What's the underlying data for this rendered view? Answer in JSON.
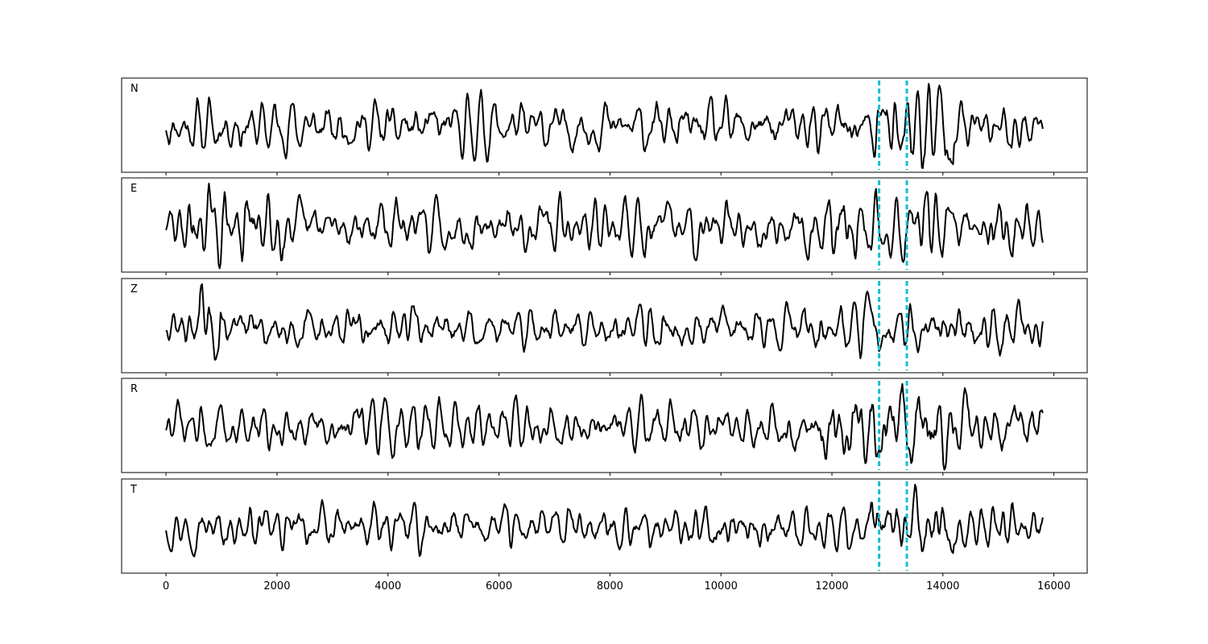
{
  "chart_data": {
    "type": "line",
    "x_range": [
      -800,
      16600
    ],
    "x_ticks": [
      0,
      2000,
      4000,
      6000,
      8000,
      10000,
      12000,
      14000,
      16000
    ],
    "x_tick_labels": [
      "0",
      "2000",
      "4000",
      "6000",
      "8000",
      "10000",
      "12000",
      "14000",
      "16000"
    ],
    "sample_count": 15800,
    "markers": [
      12850,
      13350
    ],
    "colors": {
      "trace": "#000000",
      "marker": "#17becf"
    },
    "panels": [
      {
        "label": "N",
        "seed": 11,
        "amp": 0.4,
        "bursts": [
          [
            12700,
            14200,
            1.9
          ],
          [
            1200,
            1500,
            1.2
          ]
        ]
      },
      {
        "label": "E",
        "seed": 29,
        "amp": 0.45,
        "bursts": [
          [
            400,
            2100,
            1.5
          ],
          [
            12000,
            14000,
            1.5
          ],
          [
            14800,
            15300,
            1.3
          ]
        ]
      },
      {
        "label": "Z",
        "seed": 47,
        "amp": 0.55,
        "bursts": [
          [
            600,
            1000,
            1.6
          ],
          [
            11500,
            15500,
            1.2
          ]
        ]
      },
      {
        "label": "R",
        "seed": 73,
        "amp": 0.4,
        "bursts": [
          [
            11800,
            14500,
            1.8
          ]
        ]
      },
      {
        "label": "T",
        "seed": 97,
        "amp": 0.45,
        "bursts": [
          [
            12700,
            14200,
            1.6
          ],
          [
            14800,
            15100,
            1.5
          ]
        ]
      }
    ]
  }
}
